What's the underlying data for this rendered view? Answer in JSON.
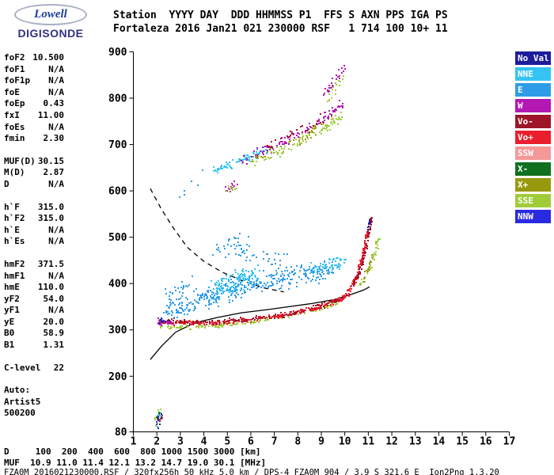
{
  "logo": {
    "top": "Lowell",
    "bottom": "DIGISONDE"
  },
  "header": {
    "line1": "Station  YYYY DAY  DDD HHMMSS P1  FFS S AXN PPS IGA PS",
    "line2": "Fortaleza 2016 Jan21 021 230000 RSF   1 714 100 10+ 11"
  },
  "params": {
    "groups": [
      {
        "rows": [
          [
            "foF2",
            "10.500"
          ],
          [
            "foF1",
            "N/A"
          ],
          [
            "foF1p",
            "N/A"
          ],
          [
            "foE",
            "N/A"
          ],
          [
            "foEp",
            "0.43"
          ],
          [
            "fxI",
            "11.00"
          ],
          [
            "foEs",
            "N/A"
          ],
          [
            "fmin",
            "2.30"
          ]
        ]
      },
      {
        "rows": [
          [
            "MUF(D)",
            "30.15"
          ],
          [
            "M(D)",
            "2.87"
          ],
          [
            "D",
            "N/A"
          ]
        ]
      },
      {
        "rows": [
          [
            "h`F",
            "315.0"
          ],
          [
            "h`F2",
            "315.0"
          ],
          [
            "h`E",
            "N/A"
          ],
          [
            "h`Es",
            "N/A"
          ]
        ]
      },
      {
        "rows": [
          [
            "hmF2",
            "371.5"
          ],
          [
            "hmF1",
            "N/A"
          ],
          [
            "hmE",
            "110.0"
          ],
          [
            "yF2",
            "54.0"
          ],
          [
            "yF1",
            "N/A"
          ],
          [
            "yE",
            "20.0"
          ],
          [
            "B0",
            "58.9"
          ],
          [
            "B1",
            "1.31"
          ]
        ]
      },
      {
        "rows": [
          [
            "C-level",
            "22"
          ]
        ]
      },
      {
        "rows": [
          [
            "Auto:",
            ""
          ],
          [
            "Artist5",
            ""
          ],
          [
            "500200",
            ""
          ]
        ]
      }
    ]
  },
  "legend": {
    "items": [
      {
        "label": "No Val",
        "color": "#1d1d9c"
      },
      {
        "label": "NNE",
        "color": "#35c3f3"
      },
      {
        "label": "E",
        "color": "#2f9ce9"
      },
      {
        "label": "W",
        "color": "#b318b3"
      },
      {
        "label": "Vo-",
        "color": "#9e1428"
      },
      {
        "label": "Vo+",
        "color": "#eb1e2e"
      },
      {
        "label": "SSW",
        "color": "#f59898"
      },
      {
        "label": "X-",
        "color": "#0f701f"
      },
      {
        "label": "X+",
        "color": "#99990f"
      },
      {
        "label": "SSE",
        "color": "#a1cc3a"
      },
      {
        "label": "NNW",
        "color": "#2a2ae0"
      }
    ]
  },
  "footer": {
    "line_d": "D     100  200  400  600  800 1000 1500 3000 [km]",
    "line_muf": "MUF  10.9 11.0 11.4 12.1 13.2 14.7 19.0 30.1 [MHz]",
    "line_info": "FZA0M_2016021230000.RSF / 320fx256h 50 kHz 5.0 km / DPS-4 FZA0M 904 / 3.9 S 321.6 E  Ion2Png 1.3.20"
  },
  "chart_data": {
    "type": "scatter",
    "xlim": [
      1,
      17
    ],
    "ylim": [
      80,
      900
    ],
    "x_ticks": [
      1,
      2,
      3,
      4,
      5,
      6,
      7,
      8,
      9,
      10,
      11,
      12,
      13,
      14,
      15,
      16,
      17
    ],
    "y_ticks": [
      80,
      200,
      300,
      400,
      500,
      600,
      700,
      800,
      900
    ],
    "palette": {
      "NoVal": "#1d1d9c",
      "NNE": "#35c3f3",
      "E": "#2f9ce9",
      "W": "#b318b3",
      "Vo-": "#9e1428",
      "Vo+": "#eb1e2e",
      "SSW": "#f59898",
      "X-": "#0f701f",
      "X+": "#99990f",
      "SSE": "#a1cc3a",
      "NNW": "#2a2ae0"
    },
    "curves": [
      {
        "name": "forecast-curve-dashed",
        "style": "dashed",
        "points": [
          [
            1.72,
            605
          ],
          [
            2.2,
            560
          ],
          [
            2.7,
            520
          ],
          [
            3.3,
            478
          ],
          [
            4.0,
            448
          ],
          [
            4.8,
            424
          ],
          [
            5.7,
            405
          ],
          [
            6.6,
            390
          ],
          [
            7.4,
            382
          ]
        ]
      },
      {
        "name": "true-height-curve-solid",
        "style": "solid",
        "points": [
          [
            1.72,
            236
          ],
          [
            2.2,
            265
          ],
          [
            2.8,
            295
          ],
          [
            3.6,
            315
          ],
          [
            4.6,
            327
          ],
          [
            5.6,
            337
          ],
          [
            6.6,
            343
          ],
          [
            7.6,
            350
          ],
          [
            8.6,
            357
          ],
          [
            9.6,
            366
          ],
          [
            10.3,
            377
          ],
          [
            10.8,
            386
          ],
          [
            11.05,
            393
          ]
        ]
      }
    ],
    "traces": [
      {
        "name": "f-trace-green",
        "color": "SSE",
        "n": 150,
        "jx": 0.06,
        "jy": 5,
        "path": [
          [
            2.1,
            307
          ],
          [
            2.8,
            305
          ],
          [
            3.6,
            305
          ],
          [
            4.4,
            308
          ],
          [
            5.2,
            312
          ],
          [
            6.0,
            317
          ],
          [
            6.8,
            323
          ],
          [
            7.6,
            330
          ],
          [
            8.4,
            339
          ],
          [
            9.2,
            350
          ],
          [
            9.7,
            358
          ]
        ]
      },
      {
        "name": "f-trace-red",
        "color": "Vo+",
        "n": 290,
        "jx": 0.06,
        "jy": 6,
        "path": [
          [
            2.1,
            318
          ],
          [
            3.0,
            315
          ],
          [
            4.0,
            314
          ],
          [
            5.0,
            317
          ],
          [
            6.0,
            322
          ],
          [
            7.0,
            329
          ],
          [
            8.0,
            338
          ],
          [
            8.9,
            349
          ],
          [
            9.6,
            361
          ],
          [
            10.0,
            370
          ]
        ]
      },
      {
        "name": "f-trace-darkred",
        "color": "Vo-",
        "n": 130,
        "jx": 0.06,
        "jy": 7,
        "path": [
          [
            2.2,
            321
          ],
          [
            3.2,
            317
          ],
          [
            4.2,
            316
          ],
          [
            5.2,
            319
          ],
          [
            6.2,
            324
          ],
          [
            7.2,
            331
          ],
          [
            8.2,
            341
          ],
          [
            9.0,
            352
          ],
          [
            9.7,
            364
          ]
        ]
      },
      {
        "name": "f-trace-magenta-start",
        "color": "W",
        "n": 28,
        "jx": 0.1,
        "jy": 9,
        "path": [
          [
            2.05,
            316
          ],
          [
            2.35,
            318
          ],
          [
            2.65,
            315
          ]
        ]
      },
      {
        "name": "f-trace-navy-start",
        "color": "NoVal",
        "n": 7,
        "jx": 0.1,
        "jy": 8,
        "path": [
          [
            2.05,
            322
          ],
          [
            2.5,
            318
          ]
        ]
      },
      {
        "name": "rising-red",
        "color": "Vo+",
        "n": 110,
        "jx": 0.05,
        "jy": 9,
        "path": [
          [
            10.0,
            372
          ],
          [
            10.25,
            388
          ],
          [
            10.45,
            408
          ],
          [
            10.6,
            428
          ],
          [
            10.72,
            450
          ],
          [
            10.82,
            473
          ],
          [
            10.9,
            497
          ],
          [
            10.97,
            518
          ]
        ]
      },
      {
        "name": "rising-darkred",
        "color": "Vo-",
        "n": 60,
        "jx": 0.06,
        "jy": 9,
        "path": [
          [
            10.3,
            392
          ],
          [
            10.55,
            415
          ],
          [
            10.75,
            442
          ],
          [
            10.9,
            472
          ],
          [
            11.0,
            500
          ],
          [
            11.08,
            527
          ],
          [
            11.13,
            543
          ]
        ]
      },
      {
        "name": "rising-navy-top",
        "color": "NoVal",
        "n": 10,
        "jx": 0.06,
        "jy": 7,
        "path": [
          [
            10.95,
            512
          ],
          [
            11.05,
            530
          ],
          [
            11.12,
            544
          ]
        ]
      },
      {
        "name": "rising-green",
        "color": "SSE",
        "n": 40,
        "jx": 0.08,
        "jy": 9,
        "path": [
          [
            10.65,
            396
          ],
          [
            10.95,
            420
          ],
          [
            11.2,
            448
          ],
          [
            11.35,
            478
          ],
          [
            11.42,
            500
          ]
        ]
      },
      {
        "name": "rising-olive",
        "color": "X+",
        "n": 16,
        "jx": 0.07,
        "jy": 9,
        "path": [
          [
            10.8,
            408
          ],
          [
            11.05,
            440
          ],
          [
            11.25,
            470
          ]
        ]
      },
      {
        "name": "cloud-main",
        "color": "E",
        "n": 360,
        "jx": 0.18,
        "jy": 26,
        "path": [
          [
            2.35,
            336
          ],
          [
            3.0,
            346
          ],
          [
            3.7,
            357
          ],
          [
            4.3,
            369
          ],
          [
            4.9,
            381
          ],
          [
            5.5,
            392
          ],
          [
            6.1,
            400
          ],
          [
            6.8,
            407
          ],
          [
            7.5,
            413
          ],
          [
            8.2,
            419
          ],
          [
            8.9,
            425
          ],
          [
            9.5,
            431
          ]
        ]
      },
      {
        "name": "cloud-dense",
        "color": "NNE",
        "n": 130,
        "jx": 0.25,
        "jy": 26,
        "path": [
          [
            4.3,
            378
          ],
          [
            4.8,
            392
          ],
          [
            5.3,
            403
          ],
          [
            5.8,
            411
          ],
          [
            6.3,
            416
          ]
        ]
      },
      {
        "name": "cloud-high",
        "color": "E",
        "n": 45,
        "jx": 0.3,
        "jy": 28,
        "path": [
          [
            4.5,
            462
          ],
          [
            4.9,
            482
          ],
          [
            5.3,
            496
          ],
          [
            5.7,
            474
          ],
          [
            6.1,
            456
          ]
        ]
      },
      {
        "name": "cloud-high2",
        "color": "E",
        "n": 18,
        "jx": 0.4,
        "jy": 28,
        "path": [
          [
            6.3,
            452
          ],
          [
            6.9,
            466
          ],
          [
            7.5,
            450
          ]
        ]
      },
      {
        "name": "cloud-left-sparse",
        "color": "E",
        "n": 30,
        "jx": 0.3,
        "jy": 24,
        "path": [
          [
            2.5,
            368
          ],
          [
            3.0,
            384
          ],
          [
            3.5,
            398
          ]
        ]
      },
      {
        "name": "cloud-right",
        "color": "NNE",
        "n": 55,
        "jx": 0.2,
        "jy": 16,
        "path": [
          [
            8.4,
            428
          ],
          [
            9.0,
            436
          ],
          [
            9.6,
            444
          ],
          [
            10.0,
            452
          ]
        ]
      },
      {
        "name": "stray-blue",
        "color": "E",
        "n": 6,
        "jx": 0.5,
        "jy": 28,
        "path": [
          [
            2.9,
            555
          ],
          [
            3.4,
            598
          ],
          [
            3.85,
            628
          ]
        ]
      },
      {
        "name": "hop2-cyan",
        "color": "NNE",
        "n": 85,
        "jx": 0.15,
        "jy": 13,
        "path": [
          [
            4.35,
            643
          ],
          [
            4.95,
            654
          ],
          [
            5.55,
            665
          ],
          [
            6.15,
            676
          ],
          [
            6.7,
            686
          ]
        ]
      },
      {
        "name": "hop2-magenta",
        "color": "W",
        "n": 120,
        "jx": 0.14,
        "jy": 15,
        "path": [
          [
            5.6,
            668
          ],
          [
            6.3,
            681
          ],
          [
            7.0,
            696
          ],
          [
            7.7,
            713
          ],
          [
            8.4,
            732
          ],
          [
            9.0,
            752
          ],
          [
            9.5,
            771
          ],
          [
            9.9,
            789
          ]
        ]
      },
      {
        "name": "hop2-green",
        "color": "SSE",
        "n": 100,
        "jx": 0.14,
        "jy": 13,
        "path": [
          [
            6.0,
            660
          ],
          [
            6.7,
            673
          ],
          [
            7.4,
            689
          ],
          [
            8.1,
            707
          ],
          [
            8.8,
            727
          ],
          [
            9.4,
            747
          ],
          [
            9.8,
            763
          ]
        ]
      },
      {
        "name": "hop2-olive",
        "color": "X+",
        "n": 28,
        "jx": 0.15,
        "jy": 12,
        "path": [
          [
            6.2,
            668
          ],
          [
            7.2,
            691
          ],
          [
            8.2,
            716
          ],
          [
            9.0,
            741
          ]
        ]
      },
      {
        "name": "hop2-darkred",
        "color": "Vo-",
        "n": 22,
        "jx": 0.15,
        "jy": 12,
        "path": [
          [
            6.6,
            692
          ],
          [
            7.5,
            716
          ],
          [
            8.5,
            742
          ],
          [
            9.2,
            763
          ]
        ]
      },
      {
        "name": "hop2-top-magenta",
        "color": "W",
        "n": 26,
        "jx": 0.12,
        "jy": 12,
        "path": [
          [
            9.15,
            808
          ],
          [
            9.45,
            828
          ],
          [
            9.75,
            850
          ],
          [
            9.98,
            866
          ]
        ]
      },
      {
        "name": "hop2-top-green",
        "color": "SSE",
        "n": 16,
        "jx": 0.12,
        "jy": 11,
        "path": [
          [
            9.3,
            800
          ],
          [
            9.6,
            822
          ],
          [
            9.9,
            846
          ]
        ]
      },
      {
        "name": "prehop-cluster-magenta",
        "color": "W",
        "n": 14,
        "jx": 0.15,
        "jy": 12,
        "path": [
          [
            4.9,
            598
          ],
          [
            5.15,
            608
          ],
          [
            5.35,
            615
          ]
        ]
      },
      {
        "name": "prehop-cluster-green",
        "color": "SSE",
        "n": 9,
        "jx": 0.15,
        "jy": 10,
        "path": [
          [
            4.95,
            602
          ],
          [
            5.3,
            612
          ]
        ]
      },
      {
        "name": "noise-bottom-green",
        "color": "SSE",
        "n": 14,
        "jx": 0.12,
        "jy": 16,
        "path": [
          [
            1.95,
            96
          ],
          [
            2.1,
            112
          ],
          [
            2.22,
            126
          ]
        ]
      },
      {
        "name": "noise-bottom-cyan",
        "color": "NNE",
        "n": 10,
        "jx": 0.12,
        "jy": 16,
        "path": [
          [
            1.98,
            100
          ],
          [
            2.15,
            118
          ]
        ]
      },
      {
        "name": "noise-bottom-navy",
        "color": "NoVal",
        "n": 8,
        "jx": 0.12,
        "jy": 14,
        "path": [
          [
            2.0,
            92
          ],
          [
            2.18,
            108
          ]
        ]
      },
      {
        "name": "noise-bottom-red",
        "color": "Vo+",
        "n": 6,
        "jx": 0.12,
        "jy": 14,
        "path": [
          [
            2.05,
            98
          ],
          [
            2.2,
            115
          ]
        ]
      },
      {
        "name": "noise-bottom-dgreen",
        "color": "X-",
        "n": 6,
        "jx": 0.1,
        "jy": 12,
        "path": [
          [
            2.0,
            105
          ],
          [
            2.15,
            120
          ]
        ]
      },
      {
        "name": "noise-bottom-blue",
        "color": "NNW",
        "n": 5,
        "jx": 0.12,
        "jy": 12,
        "path": [
          [
            2.02,
            95
          ],
          [
            2.16,
            112
          ]
        ]
      }
    ]
  }
}
